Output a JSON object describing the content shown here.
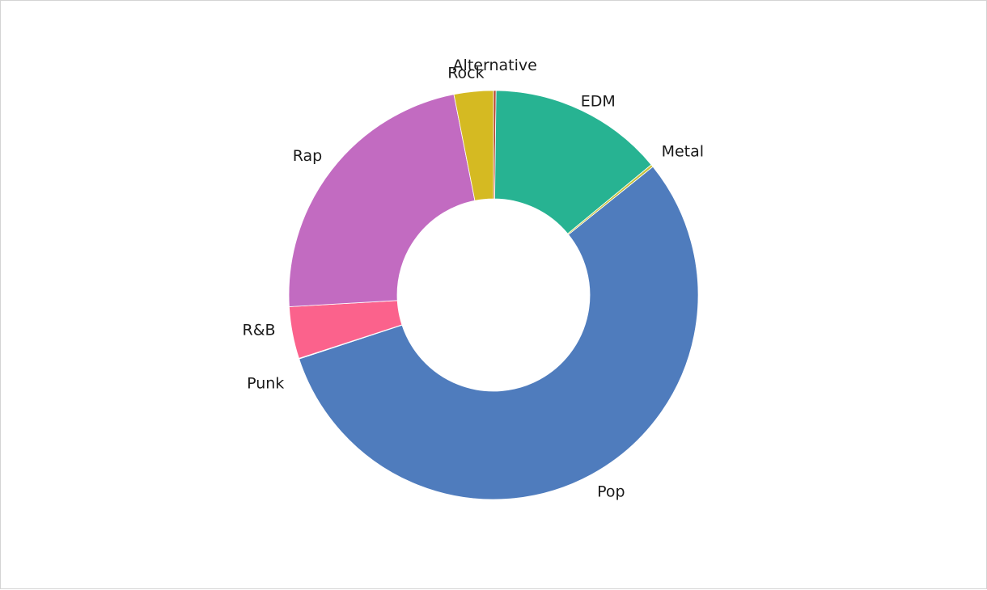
{
  "chart_data": {
    "type": "pie",
    "subtype": "donut",
    "title": "",
    "legend": "none",
    "slices": [
      {
        "label": "Alternative",
        "value": 0.2,
        "color": "#b8412c"
      },
      {
        "label": "EDM",
        "value": 13.8,
        "color": "#27b392"
      },
      {
        "label": "Metal",
        "value": 0.2,
        "color": "#c9c23a"
      },
      {
        "label": "Pop",
        "value": 55.7,
        "color": "#4f7cbd"
      },
      {
        "label": "Punk",
        "value": 0.05,
        "color": "#e34f6f"
      },
      {
        "label": "R&B",
        "value": 4.1,
        "color": "#fb628c"
      },
      {
        "label": "Rap",
        "value": 22.8,
        "color": "#c26bc1"
      },
      {
        "label": "Rock",
        "value": 3.1,
        "color": "#d5ba22"
      }
    ]
  }
}
